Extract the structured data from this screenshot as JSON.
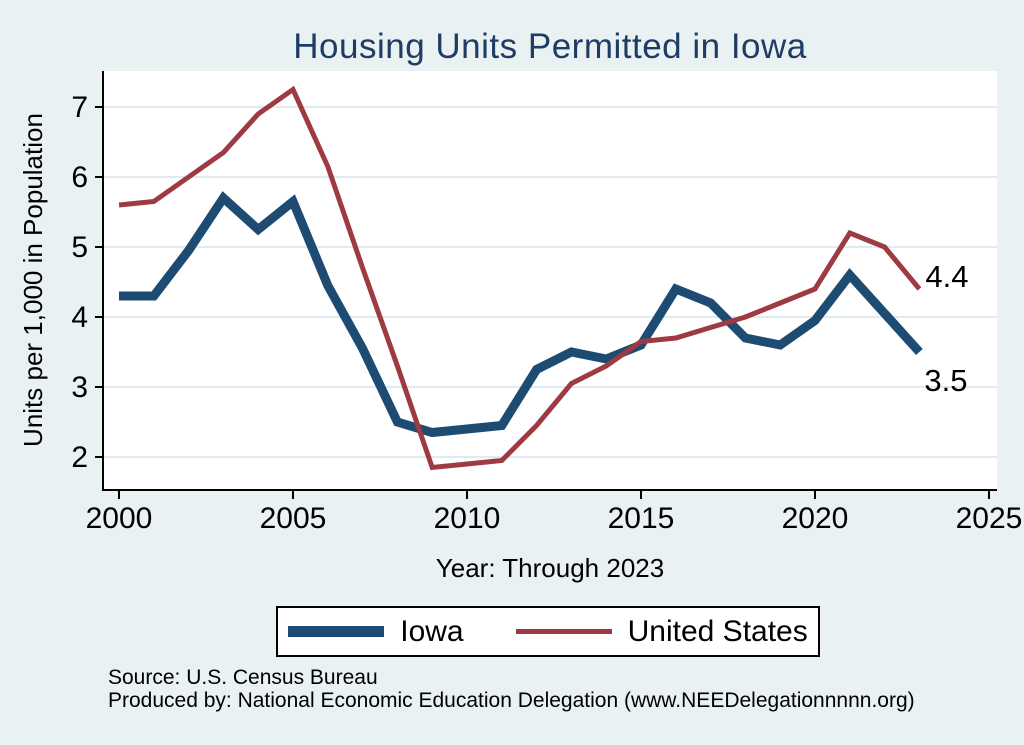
{
  "figure": {
    "background": "#eaf1f3",
    "plot_background": "#ffffff",
    "gridline_color": "#dfebf1",
    "axis_color": "#000000",
    "title_color": "#1e3c64"
  },
  "chart_data": {
    "type": "line",
    "title": "Housing Units Permitted in Iowa",
    "xlabel": "Year: Through 2023",
    "ylabel": "Units per 1,000 in Population",
    "x": [
      2000,
      2001,
      2002,
      2003,
      2004,
      2005,
      2006,
      2007,
      2008,
      2009,
      2010,
      2011,
      2012,
      2013,
      2014,
      2015,
      2016,
      2017,
      2018,
      2019,
      2020,
      2021,
      2022,
      2023
    ],
    "series": [
      {
        "name": "Iowa",
        "color": "#1d4b72",
        "line_width": 9,
        "end_label": "3.5",
        "end_label_dx": 5,
        "end_label_dy": 39,
        "values": [
          4.3,
          4.3,
          4.95,
          5.7,
          5.25,
          5.65,
          4.45,
          3.55,
          2.5,
          2.35,
          2.4,
          2.45,
          3.25,
          3.5,
          3.4,
          3.6,
          4.4,
          4.2,
          3.7,
          3.6,
          3.95,
          4.6,
          4.05,
          3.5
        ]
      },
      {
        "name": "United States",
        "color": "#9d3a42",
        "line_width": 5,
        "end_label": "4.4",
        "end_label_dx": 6,
        "end_label_dy": -2,
        "values": [
          5.6,
          5.65,
          6.0,
          6.35,
          6.9,
          7.25,
          6.15,
          4.7,
          3.3,
          1.85,
          1.9,
          1.95,
          2.45,
          3.05,
          3.3,
          3.65,
          3.7,
          3.85,
          4.0,
          4.2,
          4.4,
          5.2,
          5.0,
          4.4
        ]
      }
    ],
    "xticks": [
      2000,
      2005,
      2010,
      2015,
      2020,
      2025
    ],
    "yticks": [
      2,
      3,
      4,
      5,
      6,
      7
    ],
    "xlim": [
      1999.5,
      2025.2
    ],
    "ylim": [
      1.53,
      7.51
    ],
    "grid": "horizontal",
    "legend_position": "bottom"
  },
  "footer": {
    "source": "Source: U.S. Census Bureau",
    "produced_by": "Produced by: National Economic Education Delegation (www.NEEDelegationnnnn.org)"
  }
}
